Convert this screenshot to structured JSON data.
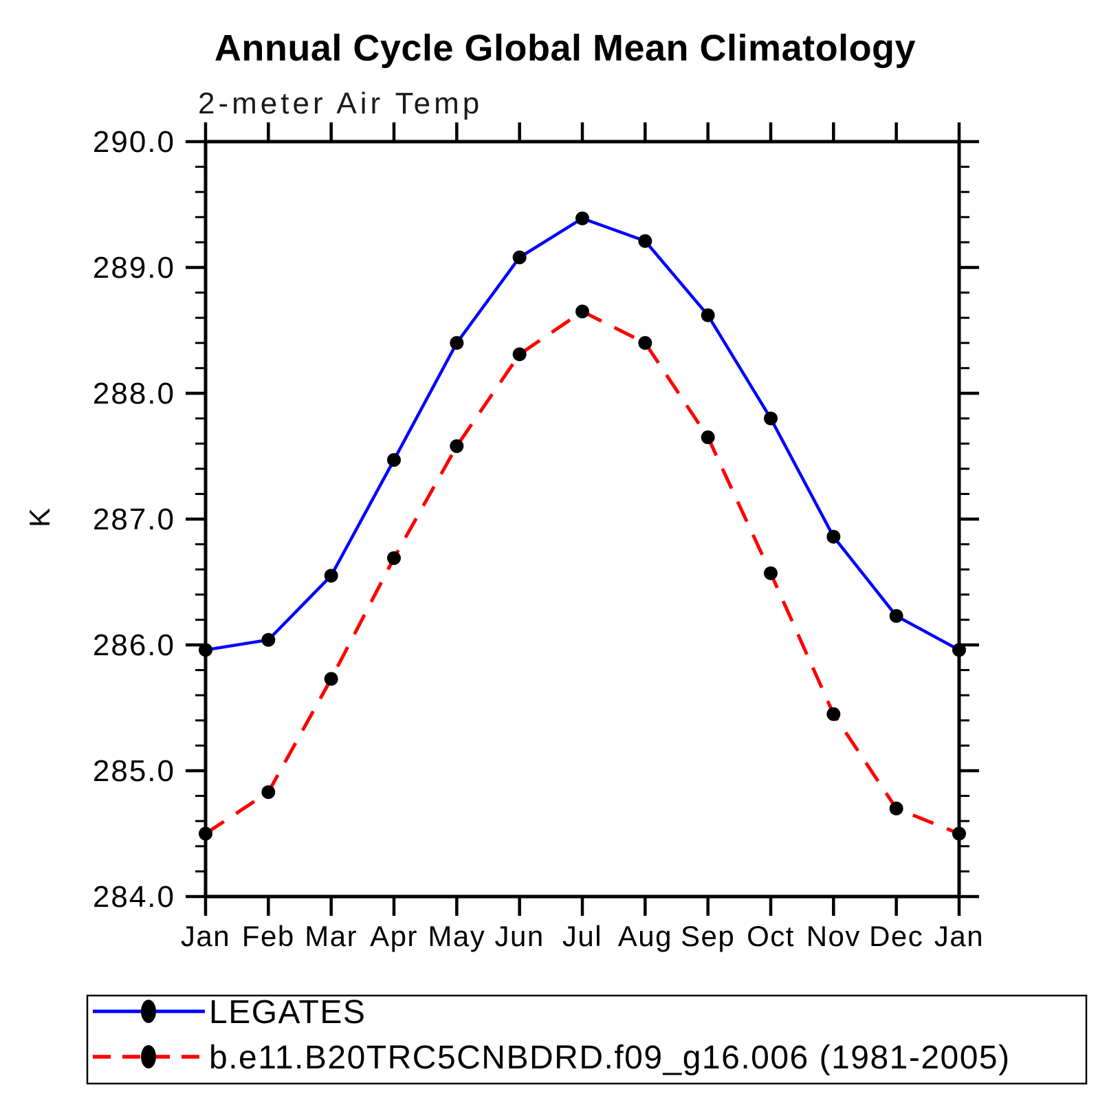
{
  "chart_data": {
    "type": "line",
    "title": "Annual Cycle Global Mean Climatology",
    "subtitle": "2-meter Air Temp",
    "ylabel": "K",
    "xlabel": "",
    "x_categories": [
      "Jan",
      "Feb",
      "Mar",
      "Apr",
      "May",
      "Jun",
      "Jul",
      "Aug",
      "Sep",
      "Oct",
      "Nov",
      "Dec",
      "Jan"
    ],
    "ylim": [
      284.0,
      290.0
    ],
    "y_major_step": 1.0,
    "y_minor_step": 0.2,
    "y_tick_labels": [
      "284.0",
      "285.0",
      "286.0",
      "287.0",
      "288.0",
      "289.0",
      "290.0"
    ],
    "grid": "off",
    "legend_position": "bottom-left-box",
    "series": [
      {
        "name": "LEGATES",
        "color": "#0000ff",
        "line_style": "solid",
        "marker": "filled-circle",
        "marker_color": "#000000",
        "values": [
          285.96,
          286.04,
          286.55,
          287.47,
          288.4,
          289.08,
          289.39,
          289.21,
          288.62,
          287.8,
          286.86,
          286.23,
          285.96
        ]
      },
      {
        "name": "b.e11.B20TRC5CNBDRD.f09_g16.006 (1981-2005)",
        "color": "#ff0000",
        "line_style": "dashed",
        "marker": "filled-circle",
        "marker_color": "#000000",
        "values": [
          284.5,
          284.83,
          285.73,
          286.69,
          287.58,
          288.31,
          288.65,
          288.4,
          287.65,
          286.57,
          285.45,
          284.7,
          284.5
        ]
      }
    ],
    "axis_color": "#000000",
    "background_color": "#ffffff"
  }
}
